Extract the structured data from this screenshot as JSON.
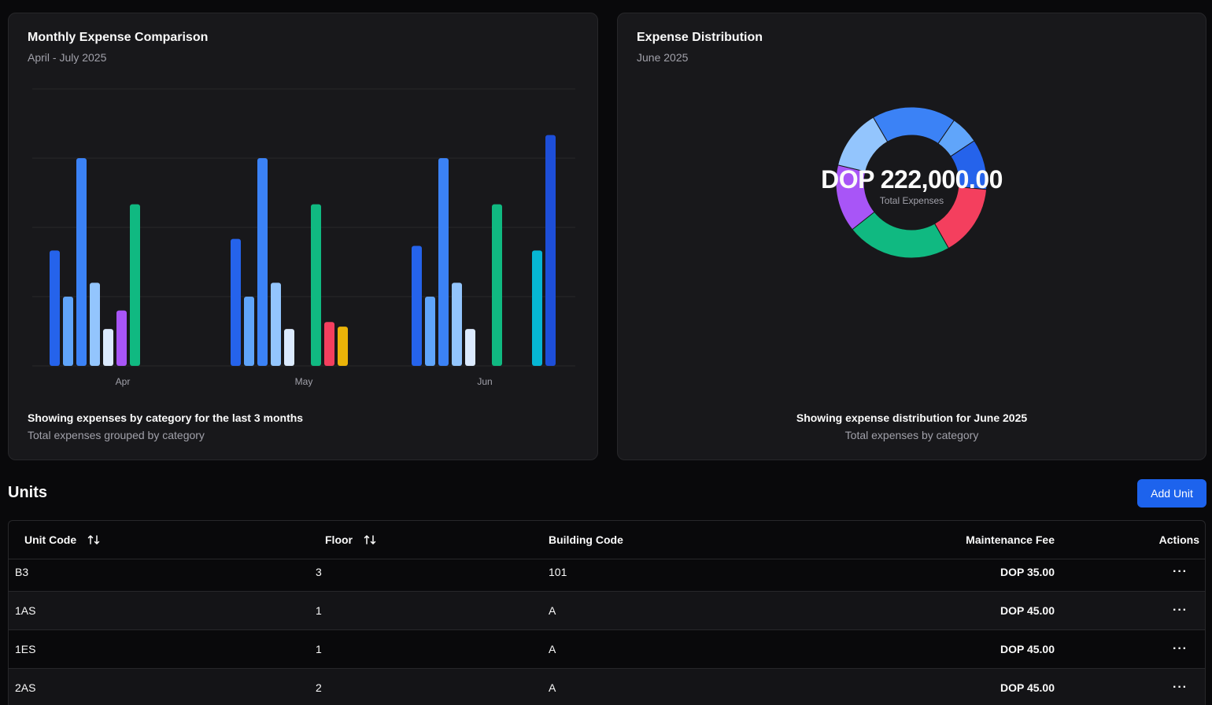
{
  "bar_card": {
    "title": "Monthly Expense Comparison",
    "subtitle": "April - July 2025",
    "footer_main": "Showing expenses by category for the last 3 months",
    "footer_sub": "Total expenses grouped by category"
  },
  "pie_card": {
    "title": "Expense Distribution",
    "subtitle": "June 2025",
    "total": "DOP 222,000.00",
    "total_label": "Total Expenses",
    "footer_main": "Showing expense distribution for June 2025",
    "footer_sub": "Total expenses by category"
  },
  "chart_data": [
    {
      "type": "bar",
      "categories": [
        "Apr",
        "May",
        "Jun"
      ],
      "ylim": [
        0,
        60000
      ],
      "grid": true,
      "series": [
        {
          "color": "#2563eb",
          "values": [
            25000,
            27500,
            26000
          ]
        },
        {
          "color": "#60a5fa",
          "values": [
            15000,
            15000,
            15000
          ]
        },
        {
          "color": "#3b82f6",
          "values": [
            45000,
            45000,
            45000
          ]
        },
        {
          "color": "#93c5fd",
          "values": [
            18000,
            18000,
            18000
          ]
        },
        {
          "color": "#dbeafe",
          "values": [
            8000,
            8000,
            8000
          ]
        },
        {
          "color": "#a855f7",
          "values": [
            12000,
            0,
            0
          ]
        },
        {
          "color": "#10b981",
          "values": [
            35000,
            35000,
            35000
          ]
        },
        {
          "color": "#f43f5e",
          "values": [
            0,
            9500,
            0
          ]
        },
        {
          "color": "#eab308",
          "values": [
            0,
            8500,
            0
          ]
        },
        {
          "color": "#06b6d4",
          "values": [
            0,
            0,
            25000
          ]
        },
        {
          "color": "#1d4ed8",
          "values": [
            0,
            0,
            50000
          ]
        }
      ]
    },
    {
      "type": "pie",
      "donut": true,
      "slices": [
        {
          "color": "#3b82f6",
          "value": 40000
        },
        {
          "color": "#60a5fa",
          "value": 13500
        },
        {
          "color": "#2563eb",
          "value": 24000
        },
        {
          "color": "#f43f5e",
          "value": 34000
        },
        {
          "color": "#10b981",
          "value": 50000
        },
        {
          "color": "#a855f7",
          "value": 32000
        },
        {
          "color": "#93c5fd",
          "value": 28500
        }
      ]
    }
  ],
  "units": {
    "title": "Units",
    "add_label": "Add Unit",
    "columns": [
      "Unit Code",
      "Floor",
      "Building Code",
      "Maintenance Fee",
      "Actions"
    ],
    "rows": [
      {
        "code": "B3",
        "floor": "3",
        "building": "101",
        "fee": "DOP 35.00"
      },
      {
        "code": "1AS",
        "floor": "1",
        "building": "A",
        "fee": "DOP 45.00"
      },
      {
        "code": "1ES",
        "floor": "1",
        "building": "A",
        "fee": "DOP 45.00"
      },
      {
        "code": "2AS",
        "floor": "2",
        "building": "A",
        "fee": "DOP 45.00"
      }
    ],
    "row_action_icon": "more-horizontal-icon"
  }
}
